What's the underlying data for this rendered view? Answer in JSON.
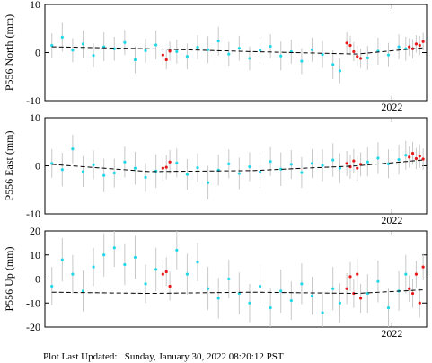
{
  "chart_data": [
    {
      "type": "scatter",
      "ylabel": "P556 North (mm)",
      "xlim": [
        2021.0,
        2022.1
      ],
      "xticks": [
        2022
      ],
      "ylim": [
        -10,
        10
      ],
      "yticks": [
        -10,
        0,
        10
      ],
      "series": [
        {
          "color": "#22d8e8",
          "x": [
            2021.02,
            2021.05,
            2021.08,
            2021.11,
            2021.14,
            2021.17,
            2021.2,
            2021.23,
            2021.26,
            2021.29,
            2021.32,
            2021.38,
            2021.41,
            2021.44,
            2021.47,
            2021.5,
            2021.53,
            2021.56,
            2021.59,
            2021.62,
            2021.65,
            2021.68,
            2021.71,
            2021.74,
            2021.77,
            2021.8,
            2021.83,
            2021.85,
            2021.93,
            2021.96,
            2021.99,
            2022.02,
            2022.04
          ],
          "values": [
            1.5,
            3.2,
            0.5,
            1.8,
            -0.6,
            1.2,
            0.8,
            2.1,
            -1.5,
            0.4,
            1.6,
            0.2,
            -0.8,
            1.1,
            0.6,
            2.4,
            -0.3,
            0.9,
            -1.2,
            0.5,
            1.3,
            -0.7,
            0.2,
            -1.8,
            0.6,
            -0.4,
            -2.5,
            -3.8,
            -1.1,
            0.3,
            -0.5,
            1.2,
            0.8
          ],
          "errors": [
            2.5,
            3,
            2.5,
            2.8,
            2.5,
            3,
            2.5,
            2.6,
            2.8,
            2.5,
            3,
            2.5,
            2.7,
            2.5,
            2.8,
            3,
            2.5,
            2.6,
            2.5,
            2.8,
            2.5,
            3,
            2.5,
            2.7,
            2.5,
            2.8,
            3,
            2.6,
            2.5,
            2.8,
            2.5,
            2.6,
            2.5
          ]
        },
        {
          "color": "#e81818",
          "x": [
            2021.34,
            2021.35,
            2021.36,
            2021.87,
            2021.88,
            2021.89,
            2021.9,
            2021.91,
            2022.05,
            2022.06,
            2022.07,
            2022.08,
            2022.09
          ],
          "values": [
            -0.5,
            -1.5,
            0.3,
            2,
            1.5,
            0.2,
            -0.8,
            -1.2,
            1.2,
            0.8,
            1.8,
            1.5,
            2.3
          ],
          "errors": [
            2,
            2,
            2,
            2.2,
            2,
            2,
            2.2,
            2,
            1.8,
            2,
            1.8,
            2,
            1.8
          ]
        }
      ],
      "model": {
        "color": "#000000",
        "x": [
          2021.02,
          2021.3,
          2021.6,
          2021.9,
          2022.09
        ],
        "values": [
          1.2,
          0.8,
          0.2,
          -0.3,
          1.0
        ]
      }
    },
    {
      "type": "scatter",
      "ylabel": "P556 East (mm)",
      "xlim": [
        2021.0,
        2022.1
      ],
      "xticks": [
        2022
      ],
      "ylim": [
        -10,
        10
      ],
      "yticks": [
        -10,
        0,
        10
      ],
      "series": [
        {
          "color": "#22d8e8",
          "x": [
            2021.02,
            2021.05,
            2021.08,
            2021.11,
            2021.14,
            2021.17,
            2021.2,
            2021.23,
            2021.26,
            2021.29,
            2021.32,
            2021.38,
            2021.41,
            2021.44,
            2021.47,
            2021.5,
            2021.53,
            2021.56,
            2021.59,
            2021.62,
            2021.65,
            2021.68,
            2021.71,
            2021.74,
            2021.77,
            2021.8,
            2021.83,
            2021.85,
            2021.93,
            2021.96,
            2021.99,
            2022.02,
            2022.04
          ],
          "values": [
            0.5,
            -0.8,
            3.5,
            -1.2,
            0.2,
            -2,
            -1.5,
            0.8,
            -0.5,
            -2.4,
            -1.1,
            0.6,
            -1.8,
            -0.4,
            -3.5,
            -0.9,
            0.4,
            -1.6,
            -0.2,
            -1.3,
            0.9,
            -0.7,
            0.3,
            -1.4,
            0.5,
            0.1,
            1.2,
            -0.5,
            0.8,
            1.6,
            0.4,
            1.3,
            2.2
          ],
          "errors": [
            3,
            3.5,
            3,
            3.2,
            3,
            3.5,
            3,
            3.2,
            3.4,
            3,
            3.5,
            3,
            3.2,
            3,
            3.5,
            3.2,
            3,
            3.3,
            3,
            3.2,
            3,
            3.5,
            3,
            3.2,
            3,
            3.3,
            3.5,
            3.1,
            3,
            3.3,
            3,
            3.1,
            3
          ]
        },
        {
          "color": "#e81818",
          "x": [
            2021.34,
            2021.35,
            2021.36,
            2021.87,
            2021.88,
            2021.89,
            2021.9,
            2021.91,
            2022.05,
            2022.06,
            2022.07,
            2022.08,
            2022.09
          ],
          "values": [
            -0.5,
            -0.3,
            0.8,
            0.5,
            -0.2,
            1,
            -0.5,
            0.3,
            1.8,
            2.6,
            1.5,
            2,
            1.4
          ],
          "errors": [
            2.5,
            2.5,
            2.5,
            2.6,
            2.5,
            2.5,
            2.6,
            2.5,
            2.2,
            2.4,
            2.2,
            2.4,
            2.2
          ]
        }
      ],
      "model": {
        "color": "#000000",
        "x": [
          2021.02,
          2021.3,
          2021.6,
          2021.9,
          2022.09
        ],
        "values": [
          0.3,
          -1.2,
          -1.0,
          0.0,
          1.2
        ]
      }
    },
    {
      "type": "scatter",
      "ylabel": "P556 Up (mm)",
      "xlim": [
        2021.0,
        2022.1
      ],
      "xticks": [
        2022
      ],
      "ylim": [
        -20,
        20
      ],
      "yticks": [
        -20,
        -10,
        0,
        10,
        20
      ],
      "series": [
        {
          "color": "#22d8e8",
          "x": [
            2021.02,
            2021.05,
            2021.08,
            2021.11,
            2021.14,
            2021.17,
            2021.2,
            2021.23,
            2021.26,
            2021.29,
            2021.32,
            2021.38,
            2021.41,
            2021.44,
            2021.47,
            2021.5,
            2021.53,
            2021.56,
            2021.59,
            2021.62,
            2021.65,
            2021.68,
            2021.71,
            2021.74,
            2021.77,
            2021.8,
            2021.83,
            2021.85,
            2021.93,
            2021.96,
            2021.99,
            2022.02,
            2022.04
          ],
          "values": [
            -3,
            8,
            2,
            -5,
            5,
            10,
            13,
            6,
            9,
            -2,
            4,
            12,
            2,
            7,
            -4,
            -8,
            0,
            -6,
            -10,
            -3,
            -12,
            -5,
            -9,
            -2,
            -7,
            -14,
            -4,
            -10,
            -6,
            -1,
            -12,
            -5,
            2
          ],
          "errors": [
            8,
            9,
            8,
            8.5,
            8,
            9,
            8,
            8.5,
            9,
            8,
            9,
            8,
            8.5,
            8,
            9,
            8.5,
            8,
            8.7,
            8,
            8.5,
            8,
            9,
            8,
            8.5,
            8,
            8.7,
            9,
            8.2,
            8,
            8.7,
            8,
            8.2,
            8
          ]
        },
        {
          "color": "#e81818",
          "x": [
            2021.34,
            2021.35,
            2021.36,
            2021.87,
            2021.88,
            2021.89,
            2021.9,
            2021.91,
            2022.05,
            2022.06,
            2022.07,
            2022.08,
            2022.09
          ],
          "values": [
            2,
            3,
            -3,
            -4,
            1,
            -6,
            2,
            -8,
            -4,
            -6,
            2,
            -10,
            5
          ],
          "errors": [
            6,
            6,
            6,
            6.5,
            6,
            6,
            6.5,
            6,
            5.5,
            6,
            5.5,
            6,
            5.5
          ]
        }
      ],
      "model": {
        "color": "#000000",
        "x": [
          2021.02,
          2021.3,
          2021.6,
          2021.9,
          2022.09
        ],
        "values": [
          -5.5,
          -6.0,
          -5.5,
          -6.0,
          -4.5
        ]
      }
    }
  ],
  "footer": "Plot Last Updated:   Sunday, January 30, 2022 08:20:12 PST"
}
